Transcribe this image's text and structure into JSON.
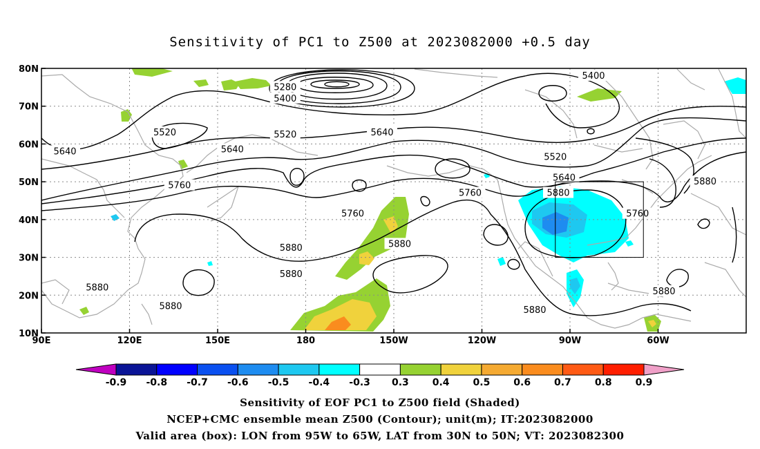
{
  "title": "Sensitivity of PC1 to Z500 at 2023082000 +0.5 day",
  "lat_labels": [
    "80N",
    "70N",
    "60N",
    "50N",
    "40N",
    "30N",
    "20N",
    "10N"
  ],
  "lon_labels": [
    "90E",
    "120E",
    "150E",
    "180",
    "150W",
    "120W",
    "90W",
    "60W"
  ],
  "contour_labels": [
    {
      "text": "5280",
      "lon": 173,
      "lat": 75
    },
    {
      "text": "5400",
      "lon": 173,
      "lat": 72
    },
    {
      "text": "5400",
      "lon": 278,
      "lat": 78
    },
    {
      "text": "5520",
      "lon": 132,
      "lat": 63
    },
    {
      "text": "5520",
      "lon": 173,
      "lat": 62.5
    },
    {
      "text": "5520",
      "lon": 265,
      "lat": 56.5
    },
    {
      "text": "5640",
      "lon": 98,
      "lat": 58
    },
    {
      "text": "5640",
      "lon": 155,
      "lat": 58.5
    },
    {
      "text": "5640",
      "lon": 206,
      "lat": 63
    },
    {
      "text": "5640",
      "lon": 268,
      "lat": 51
    },
    {
      "text": "5760",
      "lon": 137,
      "lat": 49
    },
    {
      "text": "5760",
      "lon": 196,
      "lat": 41.5
    },
    {
      "text": "5760",
      "lon": 236,
      "lat": 47
    },
    {
      "text": "5760",
      "lon": 293,
      "lat": 41.5
    },
    {
      "text": "5880",
      "lon": 266,
      "lat": 47
    },
    {
      "text": "5880",
      "lon": 316,
      "lat": 50
    },
    {
      "text": "5880",
      "lon": 175,
      "lat": 32.5
    },
    {
      "text": "5880",
      "lon": 175,
      "lat": 25.5
    },
    {
      "text": "5880",
      "lon": 212,
      "lat": 33.5
    },
    {
      "text": "5880",
      "lon": 109,
      "lat": 22
    },
    {
      "text": "5880",
      "lon": 134,
      "lat": 17
    },
    {
      "text": "5880",
      "lon": 258,
      "lat": 16
    },
    {
      "text": "5880",
      "lon": 302,
      "lat": 21
    }
  ],
  "valid_box": {
    "lon_min": 265,
    "lon_max": 295,
    "lat_min": 30,
    "lat_max": 50
  },
  "colorbar": {
    "labels": [
      "-0.9",
      "-0.8",
      "-0.7",
      "-0.6",
      "-0.5",
      "-0.4",
      "-0.3",
      "0.3",
      "0.4",
      "0.5",
      "0.6",
      "0.7",
      "0.8",
      "0.9"
    ],
    "colors": [
      "#c000c0",
      "#0a1496",
      "#0000ff",
      "#0a50f0",
      "#1e8cf0",
      "#1ec8f0",
      "#00ffff",
      "#ffffff",
      "#96d232",
      "#f0d23c",
      "#f5aa32",
      "#fa8c1e",
      "#ff5a14",
      "#ff1e00",
      "#f0a0c8"
    ]
  },
  "captions": [
    "Sensitivity of EOF PC1 to Z500 field (Shaded)",
    "NCEP+CMC ensemble mean Z500 (Contour); unit(m); IT:2023082000",
    "Valid area (box): LON from 95W to 65W, LAT from 30N to 50N; VT: 2023082300"
  ]
}
